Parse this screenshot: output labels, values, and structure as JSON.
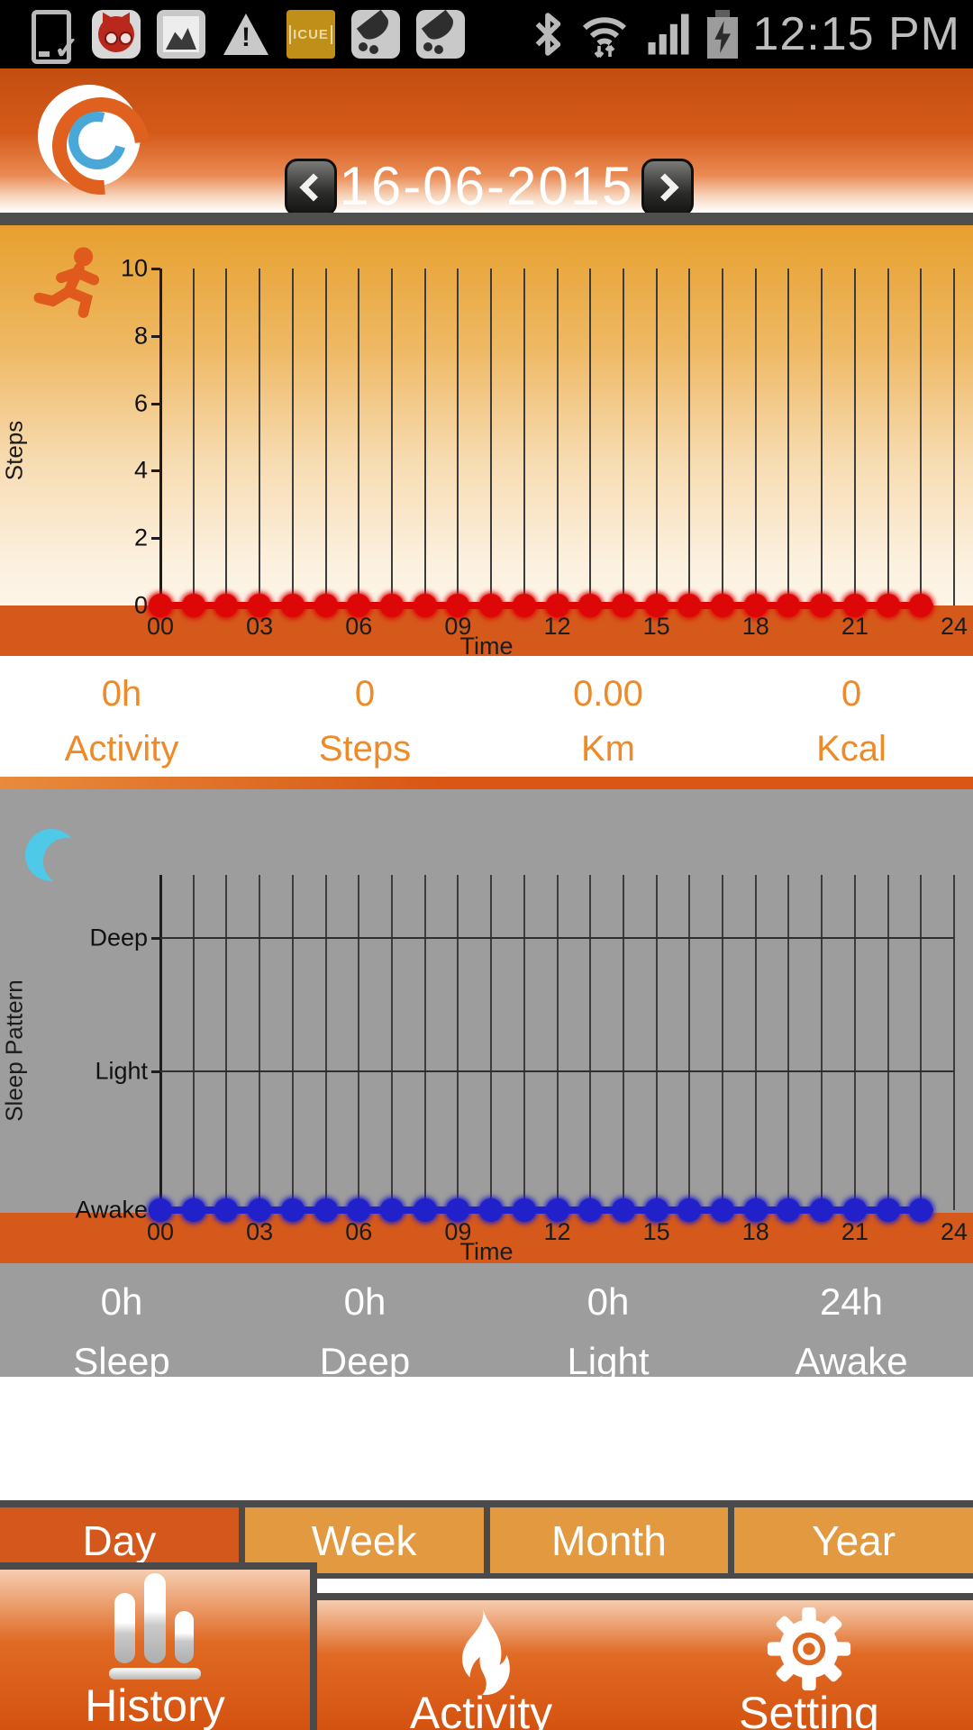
{
  "colors": {
    "accent_orange": "#d4581b",
    "amber": "#e2993f",
    "panel_gray": "#9d9d9d",
    "stats_orange": "#ee8a28",
    "steps_line": "#dd0707",
    "sleep_line": "#2121cc",
    "header_orange": "#d55a1a",
    "border_dark": "#4a4a4a"
  },
  "status_bar": {
    "time": "12:15 PM",
    "left_icons": [
      "phone-download-icon",
      "cat-app-icon",
      "gallery-icon",
      "warning-icon",
      "icue-icon",
      "satellite-dish-icon",
      "satellite-dish-icon"
    ],
    "right_icons": [
      "bluetooth-icon",
      "wifi-icon",
      "signal-strength-icon",
      "battery-charging-icon"
    ],
    "icue_label": "ICUE"
  },
  "icons": {
    "check": "✓",
    "exclamation": "!"
  },
  "header": {
    "date": "16-06-2015"
  },
  "activity_section": {
    "ylabel": "Steps",
    "stats": [
      {
        "value": "0h",
        "label": "Activity"
      },
      {
        "value": "0",
        "label": "Steps"
      },
      {
        "value": "0.00",
        "label": "Km"
      },
      {
        "value": "0",
        "label": "Kcal"
      }
    ]
  },
  "sleep_section": {
    "ylabel": "Sleep Pattern",
    "stats": [
      {
        "value": "0h",
        "label": "Sleep"
      },
      {
        "value": "0h",
        "label": "Deep"
      },
      {
        "value": "0h",
        "label": "Light"
      },
      {
        "value": "24h",
        "label": "Awake"
      }
    ]
  },
  "period_tabs": [
    {
      "label": "Day",
      "selected": true
    },
    {
      "label": "Week",
      "selected": false
    },
    {
      "label": "Month",
      "selected": false
    },
    {
      "label": "Year",
      "selected": false
    }
  ],
  "bottom_nav": [
    {
      "label": "History",
      "icon": "bar-chart-icon",
      "selected": true
    },
    {
      "label": "Activity",
      "icon": "flame-icon",
      "selected": false
    },
    {
      "label": "Setting",
      "icon": "gear-icon",
      "selected": false
    }
  ],
  "chart_data": [
    {
      "type": "line",
      "title": "",
      "ylabel": "Steps",
      "xlabel": "Time",
      "x": [
        0,
        1,
        2,
        3,
        4,
        5,
        6,
        7,
        8,
        9,
        10,
        11,
        12,
        13,
        14,
        15,
        16,
        17,
        18,
        19,
        20,
        21,
        22,
        23
      ],
      "values": [
        0,
        0,
        0,
        0,
        0,
        0,
        0,
        0,
        0,
        0,
        0,
        0,
        0,
        0,
        0,
        0,
        0,
        0,
        0,
        0,
        0,
        0,
        0,
        0
      ],
      "x_tick_labels": [
        "00",
        "03",
        "06",
        "09",
        "12",
        "15",
        "18",
        "21",
        "24"
      ],
      "x_tick_hours": [
        0,
        3,
        6,
        9,
        12,
        15,
        18,
        21,
        24
      ],
      "y_ticks": [
        0,
        2,
        4,
        6,
        8,
        10
      ],
      "ylim": [
        0,
        10
      ],
      "xlim": [
        0,
        24
      ],
      "grid": "vertical line per hour",
      "legend": "none",
      "line_color": "#dd0707"
    },
    {
      "type": "line",
      "title": "",
      "ylabel": "Sleep Pattern",
      "xlabel": "Time",
      "x": [
        0,
        1,
        2,
        3,
        4,
        5,
        6,
        7,
        8,
        9,
        10,
        11,
        12,
        13,
        14,
        15,
        16,
        17,
        18,
        19,
        20,
        21,
        22,
        23
      ],
      "values": [
        "Awake",
        "Awake",
        "Awake",
        "Awake",
        "Awake",
        "Awake",
        "Awake",
        "Awake",
        "Awake",
        "Awake",
        "Awake",
        "Awake",
        "Awake",
        "Awake",
        "Awake",
        "Awake",
        "Awake",
        "Awake",
        "Awake",
        "Awake",
        "Awake",
        "Awake",
        "Awake",
        "Awake"
      ],
      "x_tick_labels": [
        "00",
        "03",
        "06",
        "09",
        "12",
        "15",
        "18",
        "21",
        "24"
      ],
      "x_tick_hours": [
        0,
        3,
        6,
        9,
        12,
        15,
        18,
        21,
        24
      ],
      "y_tick_labels": [
        "Awake",
        "Light",
        "Deep"
      ],
      "xlim": [
        0,
        24
      ],
      "grid": "vertical line per hour + horizontal level lines",
      "legend": "none",
      "line_color": "#2121cc"
    }
  ]
}
